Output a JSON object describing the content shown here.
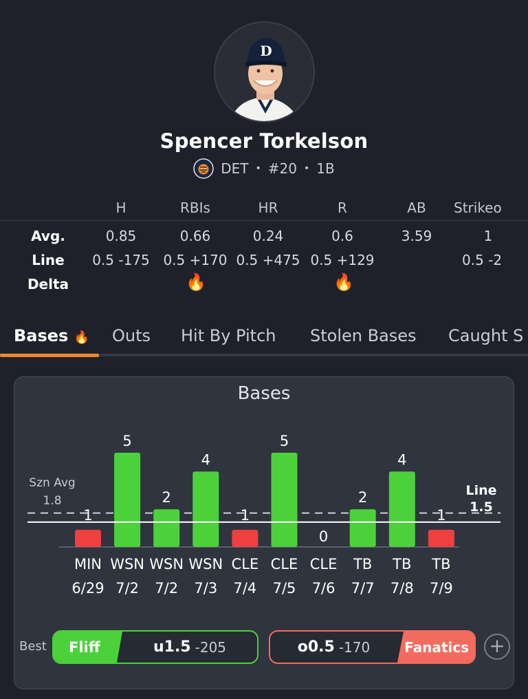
{
  "player": {
    "name": "Spencer Torkelson",
    "team": "DET",
    "number": "#20",
    "position": "1B",
    "separator": "•"
  },
  "stats": {
    "columns": [
      "H",
      "RBIs",
      "HR",
      "R",
      "AB",
      "Strikeo"
    ],
    "rows": {
      "avg": {
        "label": "Avg.",
        "values": [
          "0.85",
          "0.66",
          "0.24",
          "0.6",
          "3.59",
          "1"
        ]
      },
      "line": {
        "label": "Line",
        "values": [
          "0.5 -175",
          "0.5 +170",
          "0.5 +475",
          "0.5 +129",
          "",
          "0.5 -2"
        ]
      },
      "delta": {
        "label": "Delta",
        "fire_columns": [
          "RBIs",
          "R"
        ]
      }
    }
  },
  "tabs": [
    {
      "label": "Bases",
      "active": true,
      "fire": true
    },
    {
      "label": "Outs"
    },
    {
      "label": "Hit By Pitch"
    },
    {
      "label": "Stolen Bases"
    },
    {
      "label": "Caught S"
    }
  ],
  "chart_data": {
    "type": "bar",
    "title": "Bases",
    "categories": [
      "MIN 6/29",
      "WSN 7/2",
      "WSN 7/2",
      "WSN 7/3",
      "CLE 7/4",
      "CLE 7/5",
      "CLE 7/6",
      "TB 7/7",
      "TB 7/8",
      "TB 7/9"
    ],
    "teams": [
      "MIN",
      "WSN",
      "WSN",
      "WSN",
      "CLE",
      "CLE",
      "CLE",
      "TB",
      "TB",
      "TB"
    ],
    "dates": [
      "6/29",
      "7/2",
      "7/2",
      "7/3",
      "7/4",
      "7/5",
      "7/6",
      "7/7",
      "7/8",
      "7/9"
    ],
    "values": [
      1,
      5,
      2,
      4,
      1,
      5,
      0,
      2,
      4,
      1
    ],
    "season_avg_label": "Szn Avg",
    "season_avg": 1.8,
    "line_label": "Line",
    "line": 1.5,
    "colors": {
      "over": "#4cd13a",
      "under": "#ef3f3f"
    }
  },
  "best_bets": {
    "label": "Best",
    "left": {
      "book": "Fliff",
      "line": "u1.5",
      "odds": "-205",
      "color": "#4cd13a"
    },
    "right": {
      "book": "Fanatics",
      "line": "o0.5",
      "odds": "-170",
      "color": "#f36b5f"
    },
    "add_icon": "+"
  },
  "icons": {
    "fire": "🔥",
    "team_logo": "tigers-logo-icon",
    "avatar": "player-headshot"
  }
}
